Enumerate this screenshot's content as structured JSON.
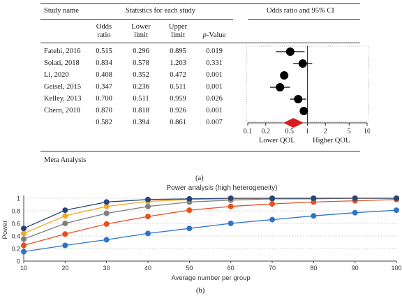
{
  "panel_a": {
    "headers": {
      "study_name": "Study name",
      "stats_group": "Statistics for each study",
      "ci_group": "Odds ratio and 95% CI",
      "odds_ratio": [
        "Odds",
        "ratio"
      ],
      "lower_limit": [
        "Lower",
        "limit"
      ],
      "upper_limit": [
        "Upper",
        "limit"
      ],
      "p_value": "p-Value"
    },
    "lower_label": "Lower QOL",
    "higher_label": "Higher QOL",
    "footer": "Meta Analysis",
    "caption": "(a)",
    "marker_color": "#000000",
    "summary_color": "#d81e1e"
  },
  "chart_data": [
    {
      "type": "forest",
      "scale": "log",
      "xlim": [
        0.1,
        10
      ],
      "ticks": [
        0.1,
        0.2,
        0.5,
        1,
        2,
        5,
        10
      ],
      "tick_labels": [
        "0.1",
        "0.2",
        "0.5",
        "1",
        "2",
        "5",
        "10"
      ],
      "studies": [
        {
          "name": "Fatehi, 2016",
          "or": "0.515",
          "lower": "0.296",
          "upper": "0.895",
          "p": "0.019"
        },
        {
          "name": "Solati, 2018",
          "or": "0.834",
          "lower": "0.578",
          "upper": "1.203",
          "p": "0.331"
        },
        {
          "name": "Li, 2020",
          "or": "0.408",
          "lower": "0.352",
          "upper": "0.472",
          "p": "0.001"
        },
        {
          "name": "Geisel, 2015",
          "or": "0.347",
          "lower": "0.236",
          "upper": "0.511",
          "p": "0.001"
        },
        {
          "name": "Kelley, 2013",
          "or": "0.700",
          "lower": "0.511",
          "upper": "0.959",
          "p": "0.026"
        },
        {
          "name": "Chern, 2018",
          "or": "0.870",
          "lower": "0.818",
          "upper": "0.926",
          "p": "0.001"
        }
      ],
      "summary": {
        "name": "",
        "or": "0.582",
        "lower": "0.394",
        "upper": "0.861",
        "p": "0.007"
      }
    },
    {
      "type": "line",
      "title": "Power analysis (high heterogeneity)",
      "xlabel": "Average number per group",
      "ylabel": "Power",
      "xlim": [
        10,
        100
      ],
      "ylim": [
        0,
        1
      ],
      "x_ticks": [
        10,
        20,
        30,
        40,
        50,
        60,
        70,
        80,
        90,
        100
      ],
      "y_ticks": [
        0,
        0.2,
        0.4,
        0.6,
        0.8,
        1
      ],
      "y_tick_labels": [
        "0",
        "0.2",
        "0.4",
        "0.6",
        "0.8",
        "1"
      ],
      "grid": "horizontal dotted",
      "x": [
        10,
        20,
        30,
        40,
        50,
        60,
        70,
        80,
        90,
        100
      ],
      "series": [
        {
          "color": "#264478",
          "values": [
            0.52,
            0.81,
            0.94,
            0.98,
            0.99,
            1.0,
            1.0,
            1.0,
            1.0,
            1.0
          ]
        },
        {
          "color": "#f5a623",
          "values": [
            0.44,
            0.72,
            0.87,
            0.95,
            0.98,
            0.99,
            1.0,
            1.0,
            1.0,
            1.0
          ]
        },
        {
          "color": "#7f7f7f",
          "values": [
            0.35,
            0.6,
            0.76,
            0.87,
            0.94,
            0.97,
            0.99,
            0.99,
            1.0,
            1.0
          ]
        },
        {
          "color": "#e8501e",
          "values": [
            0.25,
            0.43,
            0.59,
            0.71,
            0.81,
            0.87,
            0.91,
            0.94,
            0.96,
            0.98
          ]
        },
        {
          "color": "#2e75c8",
          "values": [
            0.15,
            0.25,
            0.34,
            0.44,
            0.52,
            0.6,
            0.66,
            0.72,
            0.77,
            0.81
          ]
        }
      ]
    }
  ],
  "panel_b": {
    "caption": "(b)"
  }
}
